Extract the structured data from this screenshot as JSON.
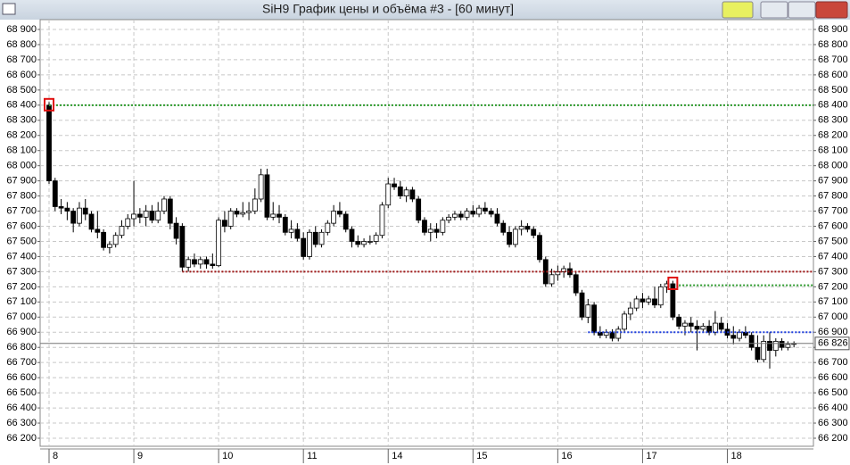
{
  "window": {
    "title": "SiH9 График цены и объёма #3 - [60 минут]"
  },
  "chart_data": {
    "type": "candlestick",
    "grid": true,
    "up_color": "#ffffff",
    "down_color": "#000000",
    "ylim": [
      66200,
      68900
    ],
    "yticks": [
      {
        "value": 66200,
        "label": "66 200"
      },
      {
        "value": 66300,
        "label": "66 300"
      },
      {
        "value": 66400,
        "label": "66 400"
      },
      {
        "value": 66500,
        "label": "66 500"
      },
      {
        "value": 66600,
        "label": "66 600"
      },
      {
        "value": 66700,
        "label": "66 700"
      },
      {
        "value": 66800,
        "label": "66 800"
      },
      {
        "value": 66900,
        "label": "66 900"
      },
      {
        "value": 67000,
        "label": "67 000"
      },
      {
        "value": 67100,
        "label": "67 100"
      },
      {
        "value": 67200,
        "label": "67 200"
      },
      {
        "value": 67300,
        "label": "67 300"
      },
      {
        "value": 67400,
        "label": "67 400"
      },
      {
        "value": 67500,
        "label": "67 500"
      },
      {
        "value": 67600,
        "label": "67 600"
      },
      {
        "value": 67700,
        "label": "67 700"
      },
      {
        "value": 67800,
        "label": "67 800"
      },
      {
        "value": 67900,
        "label": "67 900"
      },
      {
        "value": 68000,
        "label": "68 000"
      },
      {
        "value": 68100,
        "label": "68 100"
      },
      {
        "value": 68200,
        "label": "68 200"
      },
      {
        "value": 68300,
        "label": "68 300"
      },
      {
        "value": 68400,
        "label": "68 400"
      },
      {
        "value": 68500,
        "label": "68 500"
      },
      {
        "value": 68600,
        "label": "68 600"
      },
      {
        "value": 68700,
        "label": "68 700"
      },
      {
        "value": 68800,
        "label": "68 800"
      },
      {
        "value": 68900,
        "label": "68 900"
      }
    ],
    "categories": [
      "8",
      null,
      null,
      null,
      null,
      null,
      null,
      null,
      null,
      null,
      null,
      null,
      null,
      null,
      "9",
      null,
      null,
      null,
      null,
      null,
      null,
      null,
      null,
      null,
      null,
      null,
      null,
      null,
      "10",
      null,
      null,
      null,
      null,
      null,
      null,
      null,
      null,
      null,
      null,
      null,
      null,
      null,
      "11",
      null,
      null,
      null,
      null,
      null,
      null,
      null,
      null,
      null,
      null,
      null,
      null,
      null,
      "14",
      null,
      null,
      null,
      null,
      null,
      null,
      null,
      null,
      null,
      null,
      null,
      null,
      null,
      "15",
      null,
      null,
      null,
      null,
      null,
      null,
      null,
      null,
      null,
      null,
      null,
      null,
      null,
      "16",
      null,
      null,
      null,
      null,
      null,
      null,
      null,
      null,
      null,
      null,
      null,
      null,
      null,
      "17",
      null,
      null,
      null,
      null,
      null,
      null,
      null,
      null,
      null,
      null,
      null,
      null,
      null,
      "18",
      null,
      null,
      null,
      null,
      null,
      null,
      null,
      null,
      null,
      null,
      null
    ],
    "ohlc": [
      [
        68400,
        68420,
        67880,
        67900
      ],
      [
        67900,
        67920,
        67700,
        67730
      ],
      [
        67730,
        67780,
        67680,
        67720
      ],
      [
        67720,
        67760,
        67640,
        67700
      ],
      [
        67700,
        67720,
        67560,
        67620
      ],
      [
        67620,
        67760,
        67600,
        67720
      ],
      [
        67720,
        67780,
        67640,
        67680
      ],
      [
        67680,
        67700,
        67560,
        67580
      ],
      [
        67580,
        67700,
        67520,
        67560
      ],
      [
        67560,
        67580,
        67440,
        67460
      ],
      [
        67460,
        67500,
        67420,
        67480
      ],
      [
        67480,
        67560,
        67460,
        67540
      ],
      [
        67540,
        67640,
        67520,
        67600
      ],
      [
        67600,
        67680,
        67580,
        67650
      ],
      [
        67650,
        67900,
        67600,
        67680
      ],
      [
        67680,
        67720,
        67620,
        67660
      ],
      [
        67660,
        67740,
        67600,
        67700
      ],
      [
        67700,
        67740,
        67620,
        67640
      ],
      [
        67640,
        67760,
        67620,
        67700
      ],
      [
        67700,
        67800,
        67680,
        67780
      ],
      [
        67780,
        67800,
        67580,
        67620
      ],
      [
        67620,
        67660,
        67480,
        67520
      ],
      [
        67600,
        67620,
        67300,
        67330
      ],
      [
        67330,
        67400,
        67300,
        67380
      ],
      [
        67380,
        67420,
        67330,
        67350
      ],
      [
        67350,
        67400,
        67320,
        67380
      ],
      [
        67380,
        67400,
        67320,
        67350
      ],
      [
        67350,
        67420,
        67320,
        67340
      ],
      [
        67340,
        67660,
        67330,
        67640
      ],
      [
        67640,
        67700,
        67560,
        67600
      ],
      [
        67600,
        67720,
        67580,
        67700
      ],
      [
        67700,
        67720,
        67660,
        67680
      ],
      [
        67680,
        67760,
        67660,
        67690
      ],
      [
        67690,
        67760,
        67640,
        67700
      ],
      [
        67700,
        67850,
        67680,
        67780
      ],
      [
        67780,
        67980,
        67760,
        67940
      ],
      [
        67940,
        67980,
        67640,
        67660
      ],
      [
        67660,
        67760,
        67640,
        67680
      ],
      [
        67680,
        67740,
        67620,
        67660
      ],
      [
        67660,
        67680,
        67540,
        67560
      ],
      [
        67560,
        67640,
        67520,
        67580
      ],
      [
        67580,
        67620,
        67500,
        67520
      ],
      [
        67520,
        67560,
        67380,
        67400
      ],
      [
        67400,
        67580,
        67380,
        67560
      ],
      [
        67560,
        67600,
        67460,
        67480
      ],
      [
        67480,
        67580,
        67460,
        67560
      ],
      [
        67560,
        67640,
        67540,
        67620
      ],
      [
        67620,
        67740,
        67600,
        67700
      ],
      [
        67700,
        67760,
        67660,
        67680
      ],
      [
        67680,
        67700,
        67560,
        67580
      ],
      [
        67580,
        67600,
        67460,
        67500
      ],
      [
        67500,
        67540,
        67460,
        67480
      ],
      [
        67480,
        67520,
        67460,
        67500
      ],
      [
        67500,
        67540,
        67480,
        67500
      ],
      [
        67500,
        67560,
        67480,
        67540
      ],
      [
        67540,
        67760,
        67520,
        67740
      ],
      [
        67740,
        67920,
        67720,
        67880
      ],
      [
        67880,
        67920,
        67840,
        67860
      ],
      [
        67860,
        67900,
        67780,
        67800
      ],
      [
        67800,
        67860,
        67760,
        67840
      ],
      [
        67840,
        67860,
        67760,
        67780
      ],
      [
        67780,
        67800,
        67620,
        67640
      ],
      [
        67640,
        67660,
        67540,
        67560
      ],
      [
        67560,
        67620,
        67500,
        67580
      ],
      [
        67580,
        67620,
        67520,
        67560
      ],
      [
        67560,
        67660,
        67540,
        67640
      ],
      [
        67640,
        67680,
        67620,
        67660
      ],
      [
        67660,
        67700,
        67640,
        67680
      ],
      [
        67680,
        67700,
        67640,
        67660
      ],
      [
        67660,
        67720,
        67640,
        67700
      ],
      [
        67700,
        67740,
        67660,
        67680
      ],
      [
        67680,
        67740,
        67660,
        67720
      ],
      [
        67720,
        67760,
        67680,
        67700
      ],
      [
        67700,
        67720,
        67660,
        67680
      ],
      [
        67680,
        67720,
        67600,
        67620
      ],
      [
        67620,
        67640,
        67540,
        67560
      ],
      [
        67560,
        67600,
        67460,
        67480
      ],
      [
        67480,
        67600,
        67460,
        67580
      ],
      [
        67580,
        67640,
        67540,
        67600
      ],
      [
        67600,
        67620,
        67560,
        67580
      ],
      [
        67580,
        67600,
        67520,
        67540
      ],
      [
        67540,
        67560,
        67360,
        67380
      ],
      [
        67380,
        67400,
        67200,
        67220
      ],
      [
        67220,
        67320,
        67200,
        67280
      ],
      [
        67280,
        67340,
        67240,
        67300
      ],
      [
        67300,
        67340,
        67260,
        67320
      ],
      [
        67320,
        67360,
        67260,
        67280
      ],
      [
        67280,
        67300,
        67140,
        67160
      ],
      [
        67160,
        67180,
        66980,
        67000
      ],
      [
        67000,
        67120,
        66960,
        67080
      ],
      [
        67080,
        67100,
        66880,
        66900
      ],
      [
        66900,
        66940,
        66860,
        66880
      ],
      [
        66880,
        66920,
        66860,
        66900
      ],
      [
        66900,
        66920,
        66840,
        66860
      ],
      [
        66860,
        66940,
        66840,
        66920
      ],
      [
        66920,
        67040,
        66900,
        67020
      ],
      [
        67020,
        67100,
        66980,
        67060
      ],
      [
        67060,
        67140,
        67040,
        67120
      ],
      [
        67120,
        67160,
        67060,
        67100
      ],
      [
        67100,
        67140,
        67080,
        67120
      ],
      [
        67120,
        67200,
        67060,
        67080
      ],
      [
        67080,
        67220,
        67060,
        67200
      ],
      [
        67200,
        67240,
        67160,
        67220
      ],
      [
        67220,
        67240,
        66980,
        67000
      ],
      [
        67000,
        67020,
        66920,
        66940
      ],
      [
        66940,
        66980,
        66880,
        66960
      ],
      [
        66960,
        67000,
        66900,
        66940
      ],
      [
        66940,
        66980,
        66780,
        66920
      ],
      [
        66920,
        66960,
        66900,
        66940
      ],
      [
        66940,
        66980,
        66880,
        66900
      ],
      [
        66900,
        67040,
        66880,
        66960
      ],
      [
        66960,
        67000,
        66900,
        66920
      ],
      [
        66920,
        66960,
        66860,
        66880
      ],
      [
        66880,
        66940,
        66820,
        66860
      ],
      [
        66860,
        66920,
        66840,
        66900
      ],
      [
        66900,
        66940,
        66860,
        66880
      ],
      [
        66880,
        66900,
        66780,
        66800
      ],
      [
        66800,
        66880,
        66700,
        66720
      ],
      [
        66720,
        66880,
        66700,
        66840
      ],
      [
        66840,
        66900,
        66660,
        66780
      ],
      [
        66780,
        66860,
        66740,
        66840
      ],
      [
        66840,
        66860,
        66780,
        66800
      ],
      [
        66800,
        66840,
        66780,
        66820
      ],
      [
        66820,
        66840,
        66800,
        66826
      ]
    ],
    "levels": [
      {
        "value": 68400,
        "color": "#2e9b2e",
        "start": 0
      },
      {
        "value": 67300,
        "color": "#a01818",
        "start": 22
      },
      {
        "value": 67210,
        "color": "#2e9b2e",
        "start": 104
      },
      {
        "value": 66900,
        "color": "#2040e0",
        "start": 89
      }
    ],
    "markers": [
      {
        "index": 0,
        "value": 68400
      },
      {
        "index": 103,
        "value": 67220
      }
    ],
    "last_price": {
      "value": 66826,
      "label": "66 826"
    }
  }
}
